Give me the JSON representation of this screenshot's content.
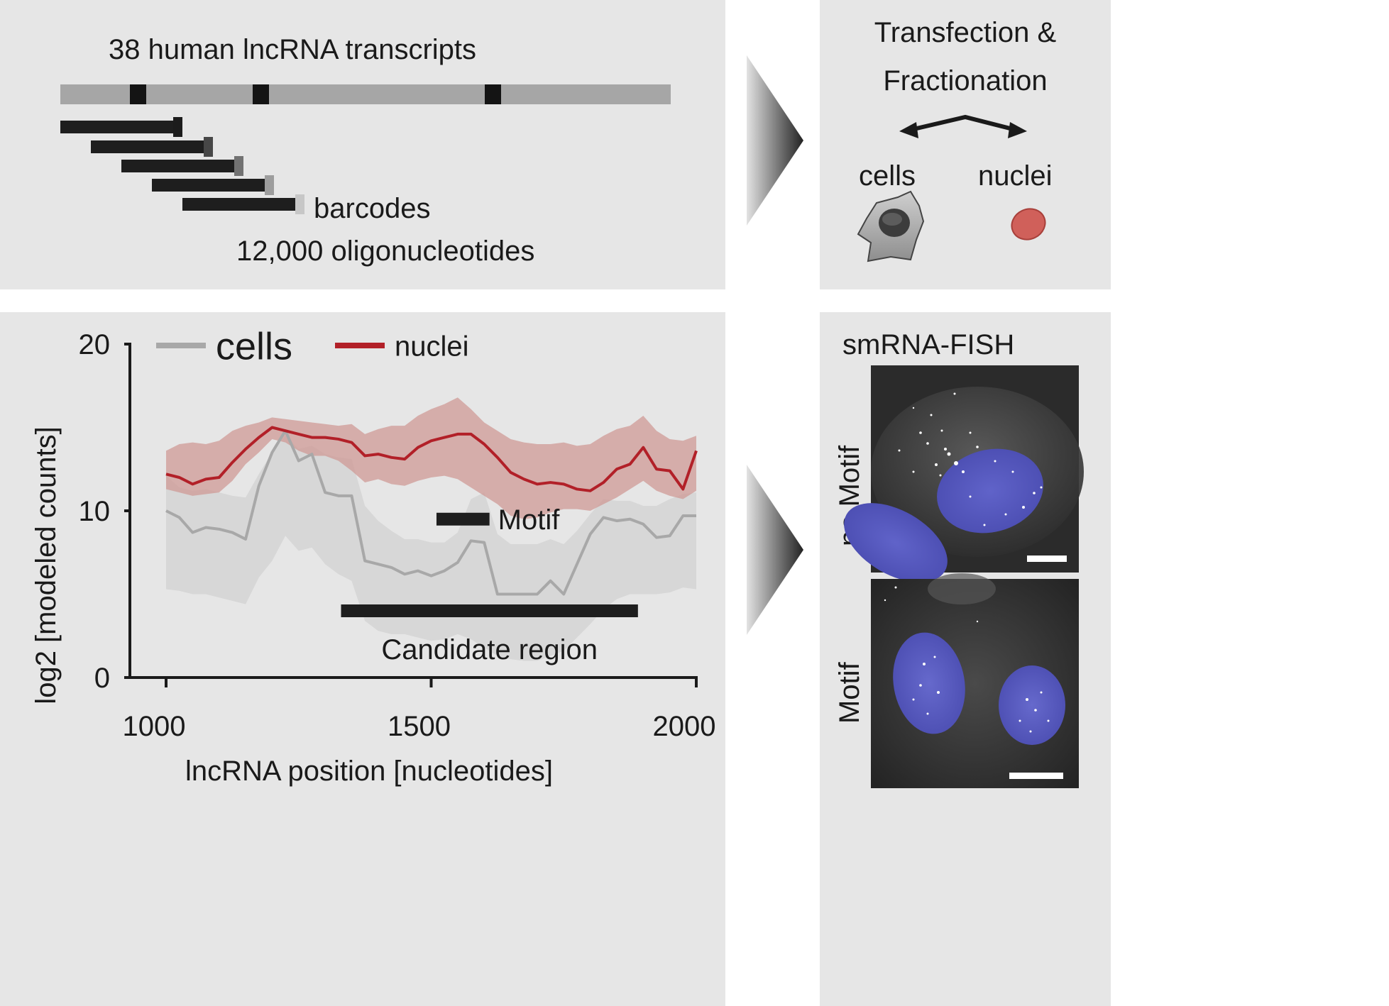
{
  "design": {
    "title": "38 human lncRNA transcripts",
    "barcodes_label": "barcodes",
    "oligo_count_label": "12,000 oligonucleotides"
  },
  "transfection": {
    "title_line1": "Transfection &",
    "title_line2": "Fractionation",
    "cells_label": "cells",
    "nuclei_label": "nuclei"
  },
  "fish": {
    "title": "smRNA-FISH",
    "row1_label": "no Motif",
    "row2_label": "Motif"
  },
  "colors": {
    "panel_bg": "#e6e6e6",
    "cells_line": "#a8a8a8",
    "cells_band": "#d3d3d3",
    "nuclei_line": "#b22028",
    "nuclei_band": "#cf9a95",
    "annotation_bar": "#1e1e1e",
    "dapi_blue": "#5a5cc8"
  },
  "chart_data": {
    "type": "line",
    "xlabel": "lncRNA position [nucleotides]",
    "ylabel": "log2 [modeled counts]",
    "xlim": [
      925,
      2005
    ],
    "ylim": [
      0,
      20
    ],
    "x_ticks": [
      1000,
      1500,
      2000
    ],
    "y_ticks": [
      0,
      10,
      20
    ],
    "legend_position": "top",
    "series": [
      {
        "name": "cells",
        "x": [
          1000,
          1025,
          1050,
          1075,
          1100,
          1125,
          1150,
          1175,
          1200,
          1225,
          1250,
          1275,
          1300,
          1325,
          1350,
          1375,
          1400,
          1425,
          1450,
          1475,
          1500,
          1525,
          1550,
          1575,
          1600,
          1625,
          1650,
          1675,
          1700,
          1725,
          1750,
          1775,
          1800,
          1825,
          1850,
          1875,
          1900,
          1925,
          1950,
          1975,
          2000
        ],
        "y": [
          10.0,
          9.6,
          8.7,
          9.0,
          8.9,
          8.7,
          8.3,
          11.5,
          13.5,
          14.8,
          13.0,
          13.4,
          11.1,
          10.9,
          10.9,
          7.0,
          6.8,
          6.6,
          6.2,
          6.4,
          6.1,
          6.4,
          6.9,
          8.2,
          8.1,
          5.0,
          5.0,
          5.0,
          5.0,
          5.8,
          5.0,
          6.8,
          8.6,
          9.6,
          9.4,
          9.5,
          9.2,
          8.4,
          8.5,
          9.7,
          9.7
        ],
        "lower": [
          5.3,
          5.2,
          5.0,
          5.0,
          4.8,
          4.6,
          4.4,
          6.0,
          7.0,
          8.5,
          7.6,
          7.8,
          6.8,
          6.2,
          5.8,
          3.4,
          2.8,
          2.6,
          2.6,
          2.4,
          2.2,
          2.3,
          2.6,
          2.3,
          1.8,
          1.3,
          1.1,
          1.0,
          1.0,
          1.3,
          1.6,
          2.4,
          3.2,
          4.1,
          4.7,
          5.0,
          5.0,
          5.0,
          5.1,
          5.4,
          5.3
        ],
        "upper": [
          12.1,
          11.4,
          11.2,
          11.3,
          11.1,
          10.9,
          10.8,
          12.2,
          13.5,
          14.5,
          13.7,
          13.9,
          13.4,
          13.2,
          13.1,
          10.3,
          9.4,
          8.8,
          8.3,
          8.3,
          8.1,
          8.1,
          8.7,
          10.7,
          11.1,
          8.6,
          8.0,
          8.0,
          8.0,
          8.3,
          8.0,
          8.8,
          9.8,
          10.7,
          10.6,
          10.6,
          10.3,
          10.3,
          10.7,
          11.0,
          11.1
        ]
      },
      {
        "name": "nuclei",
        "x": [
          1000,
          1025,
          1050,
          1075,
          1100,
          1125,
          1150,
          1175,
          1200,
          1225,
          1250,
          1275,
          1300,
          1325,
          1350,
          1375,
          1400,
          1425,
          1450,
          1475,
          1500,
          1525,
          1550,
          1575,
          1600,
          1625,
          1650,
          1675,
          1700,
          1725,
          1750,
          1775,
          1800,
          1825,
          1850,
          1875,
          1900,
          1925,
          1950,
          1975,
          2000
        ],
        "y": [
          12.2,
          12.0,
          11.6,
          11.9,
          12.0,
          12.9,
          13.7,
          14.4,
          15.0,
          14.8,
          14.6,
          14.4,
          14.4,
          14.3,
          14.1,
          13.3,
          13.4,
          13.2,
          13.1,
          13.8,
          14.2,
          14.4,
          14.6,
          14.6,
          14.0,
          13.2,
          12.3,
          11.9,
          11.6,
          11.7,
          11.6,
          11.3,
          11.2,
          11.7,
          12.5,
          12.8,
          13.8,
          12.5,
          12.4,
          11.3,
          13.6
        ],
        "lower": [
          11.3,
          11.1,
          10.9,
          11.0,
          11.1,
          11.8,
          12.8,
          13.5,
          14.3,
          14.1,
          13.6,
          13.3,
          13.3,
          13.0,
          12.4,
          11.7,
          11.9,
          11.6,
          11.5,
          11.8,
          12.0,
          12.1,
          11.9,
          11.4,
          10.9,
          10.4,
          9.7,
          9.5,
          9.6,
          9.9,
          10.1,
          10.1,
          10.0,
          10.4,
          10.8,
          11.3,
          11.8,
          11.2,
          10.9,
          10.7,
          11.2
        ],
        "upper": [
          13.6,
          14.0,
          14.1,
          14.0,
          14.2,
          14.8,
          15.1,
          15.3,
          15.6,
          15.5,
          15.4,
          15.3,
          15.2,
          15.1,
          15.2,
          14.6,
          14.9,
          15.1,
          15.1,
          15.7,
          16.1,
          16.4,
          16.8,
          16.1,
          15.3,
          14.8,
          14.3,
          14.1,
          14.0,
          14.0,
          14.1,
          13.9,
          14.0,
          14.5,
          14.9,
          15.1,
          15.7,
          14.8,
          14.3,
          14.2,
          14.5
        ]
      }
    ],
    "annotations": [
      {
        "label": "Motif",
        "x_start": 1510,
        "x_end": 1610,
        "y": 9.5
      },
      {
        "label": "Candidate region",
        "x_start": 1330,
        "x_end": 1890,
        "y": 4.0
      }
    ]
  }
}
